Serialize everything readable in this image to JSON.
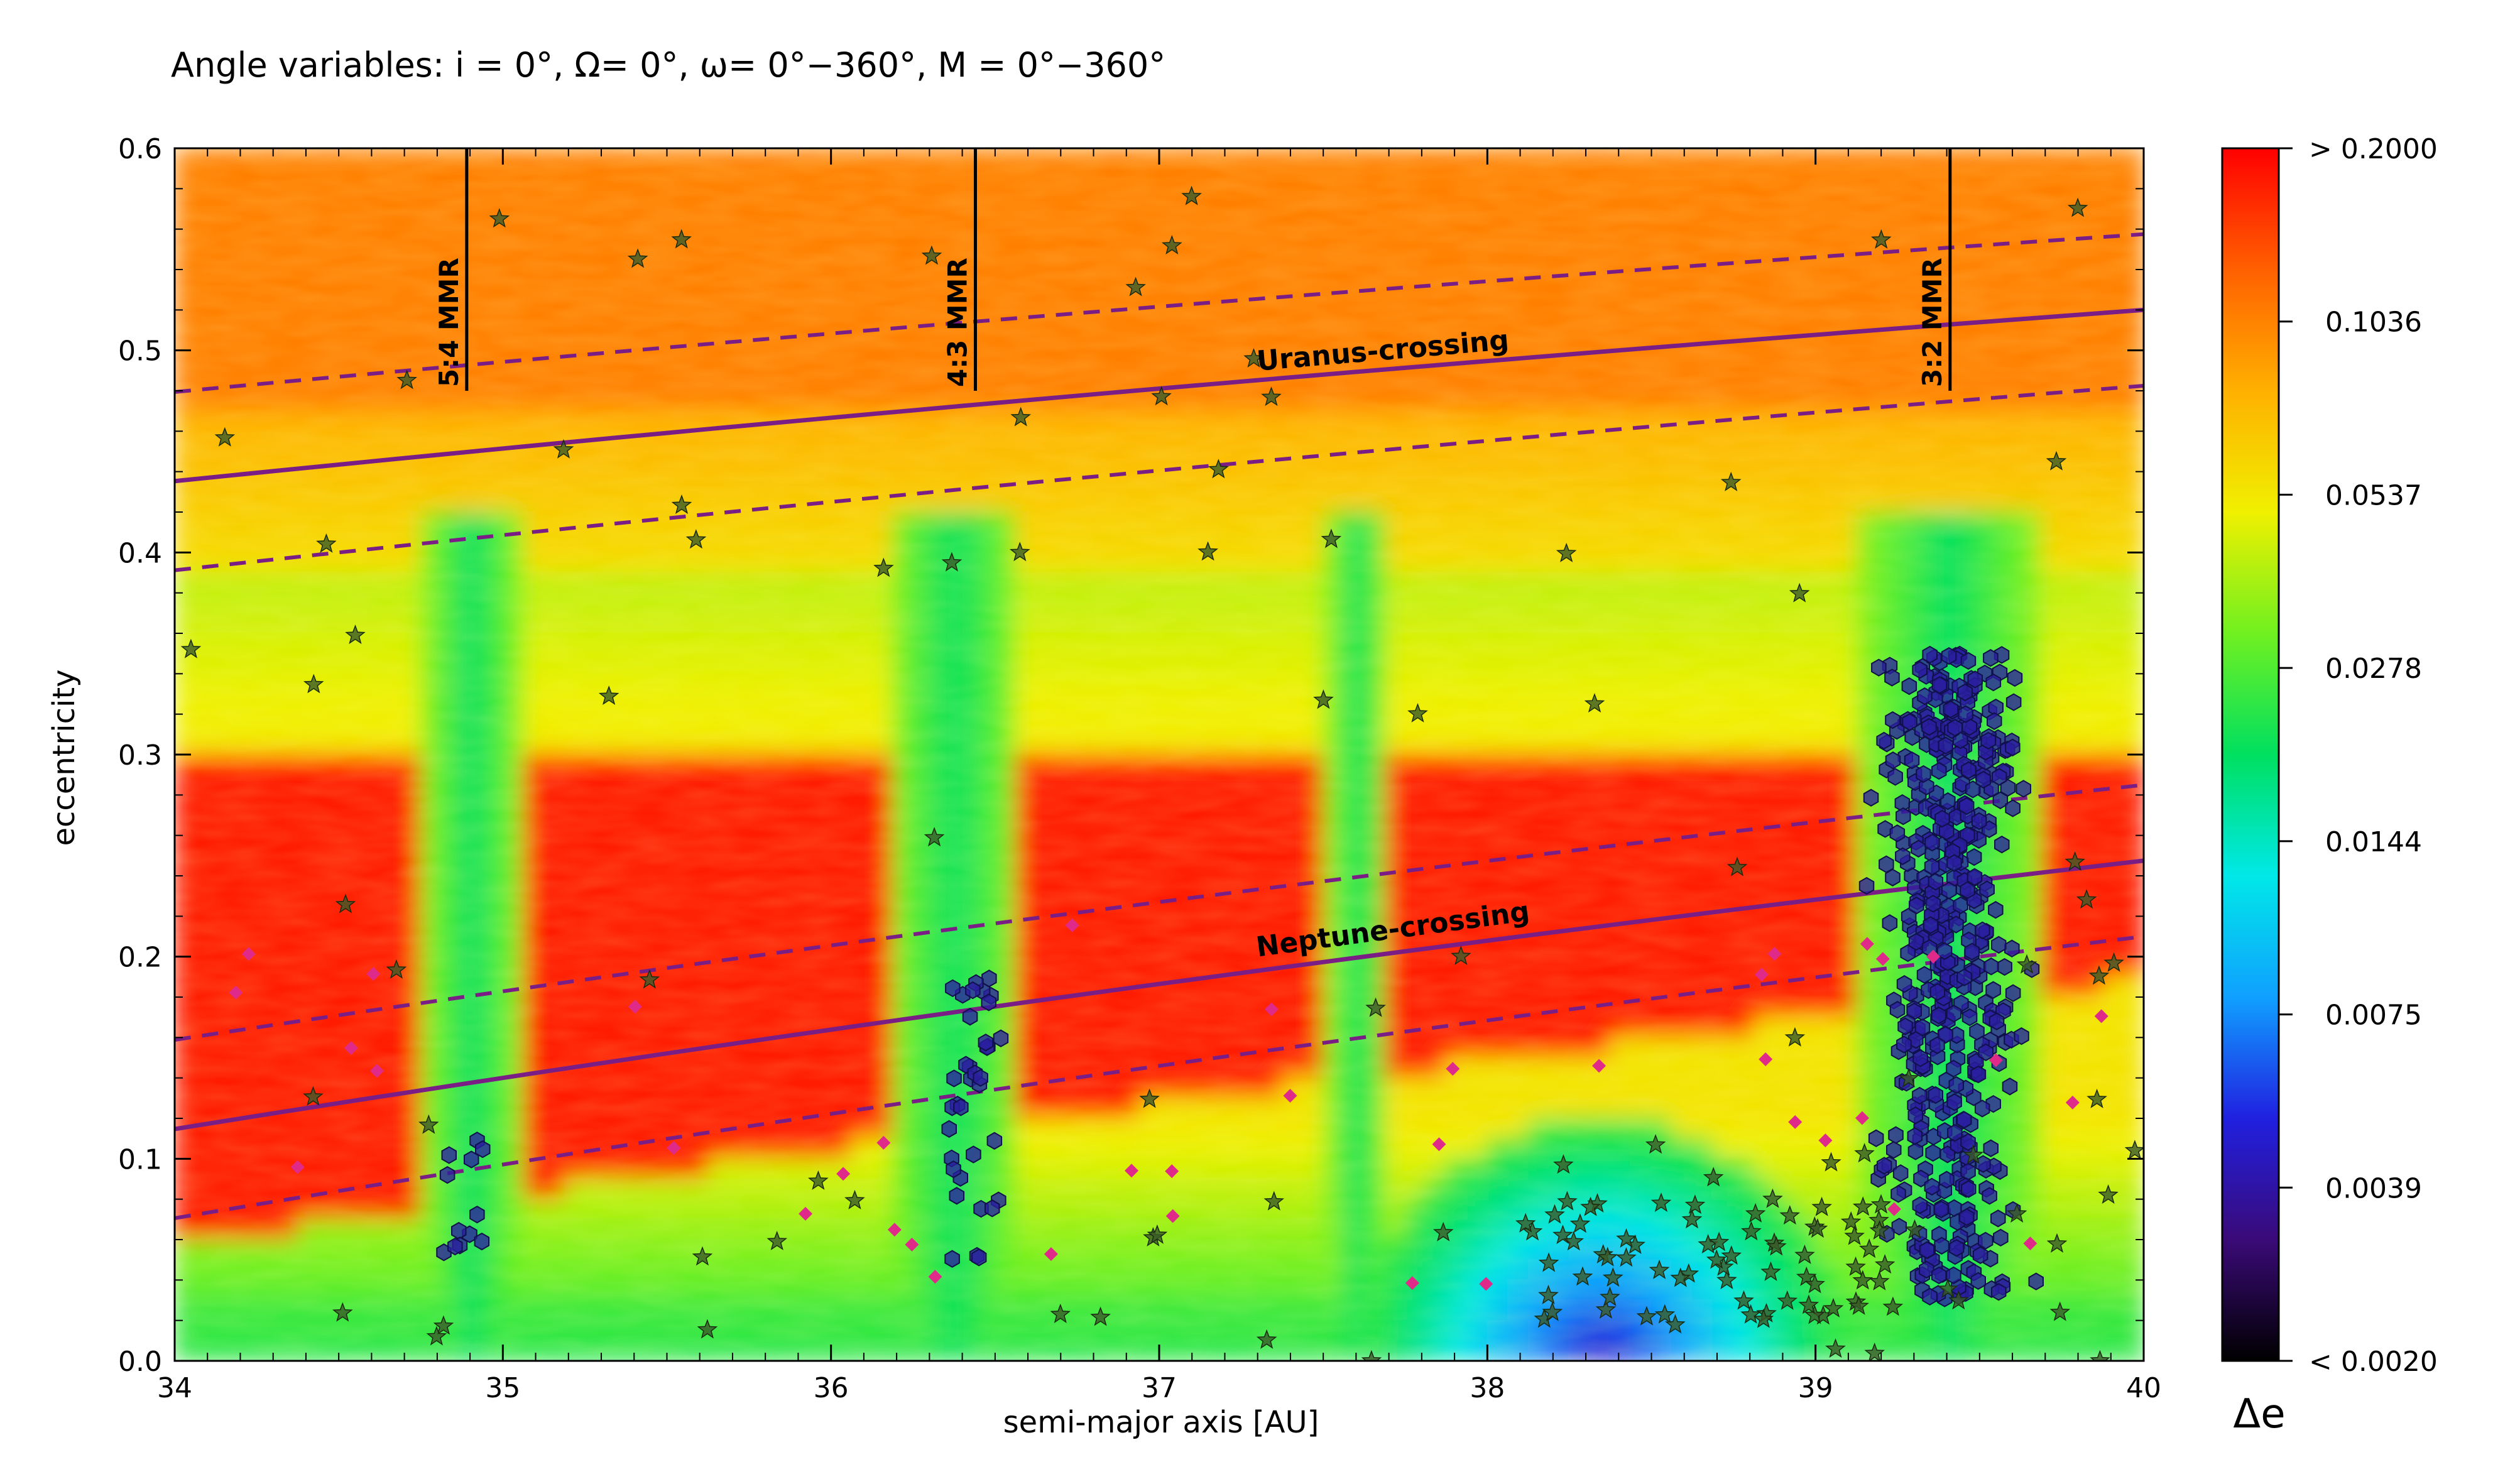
{
  "chart_data": {
    "type": "heatmap",
    "title": "Angle variables: i = 0°, Ω= 0°, ω= 0°−360°, M = 0°−360°",
    "xlabel": "semi-major axis [AU]",
    "ylabel": "eccentricity",
    "xlim": [
      34,
      40
    ],
    "ylim": [
      0.0,
      0.6
    ],
    "x_ticks": [
      "34",
      "35",
      "36",
      "37",
      "38",
      "39",
      "40"
    ],
    "y_ticks": [
      "0.0",
      "0.1",
      "0.2",
      "0.3",
      "0.4",
      "0.5",
      "0.6"
    ],
    "colorbar": {
      "label": "Δe",
      "scale": "log",
      "range": [
        0.002,
        0.2
      ],
      "tick_labels": [
        "> 0.2000",
        "0.1036",
        "0.0537",
        "0.0278",
        "0.0144",
        "0.0075",
        "0.0039",
        "< 0.0020"
      ],
      "colors": [
        "#000000",
        "#3a0a78",
        "#2020e0",
        "#10a0ff",
        "#00e8e8",
        "#00e060",
        "#70f020",
        "#f0f000",
        "#ffb000",
        "#ff6000",
        "#ff0000"
      ]
    },
    "resonances": [
      {
        "label": "5:4 MMR",
        "a": 34.89
      },
      {
        "label": "4:3 MMR",
        "a": 36.44
      },
      {
        "label": "3:2 MMR",
        "a": 39.41
      }
    ],
    "crossing_lines": [
      {
        "label": "Uranus-crossing",
        "planet_a": 19.2,
        "band": 1.5,
        "label_at": [
          37.3,
          0.49
        ]
      },
      {
        "label": "Neptune-crossing",
        "planet_a": 30.1,
        "band": 1.5,
        "label_at": [
          37.3,
          0.2
        ]
      }
    ],
    "stability_bands": [
      {
        "a_from": 34.76,
        "a_to": 35.06
      },
      {
        "a_from": 36.18,
        "a_to": 36.58
      },
      {
        "a_from": 37.52,
        "a_to": 37.7
      },
      {
        "a_from": 39.14,
        "a_to": 39.68
      }
    ],
    "series": [
      {
        "marker": "hexagon",
        "color": "#2a1fa0"
      },
      {
        "marker": "star",
        "color": "#3a5a28"
      },
      {
        "marker": "diamond",
        "color": "#e02a8a"
      }
    ]
  },
  "colors": {
    "crossing_line": "#7a1e86",
    "background": "#ffffff"
  }
}
